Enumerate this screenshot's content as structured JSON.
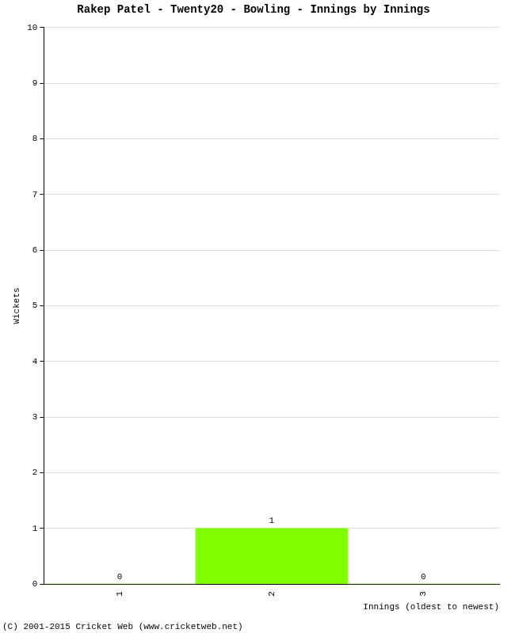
{
  "chart_data": {
    "type": "bar",
    "title": "Rakep Patel - Twenty20 - Bowling - Innings by Innings",
    "x_label": "Innings (oldest to newest)",
    "y_label": "Wickets",
    "caption": "(C) 2001-2015 Cricket Web (www.cricketweb.net)",
    "categories": [
      "1",
      "2",
      "3"
    ],
    "values": [
      0,
      1,
      0
    ],
    "color": "#80ff00",
    "ylim": [
      0,
      10
    ],
    "yticks": [
      0,
      1,
      2,
      3,
      4,
      5,
      6,
      7,
      8,
      9,
      10
    ],
    "grid": true,
    "data_labels": true
  }
}
